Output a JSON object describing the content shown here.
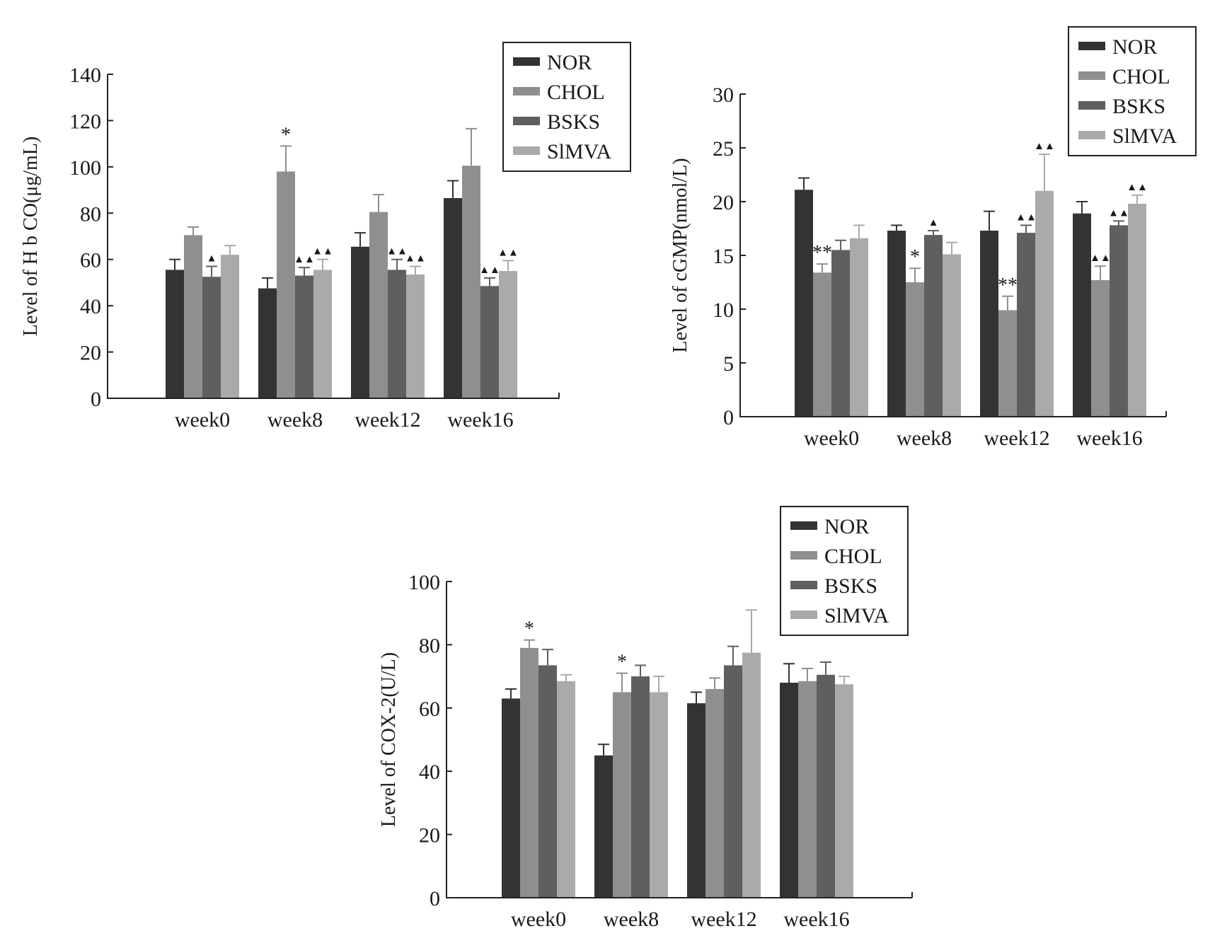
{
  "chart_data": [
    {
      "type": "bar",
      "ylabel": "Level of H b CO(μg/mL)",
      "categories": [
        "week0",
        "week8",
        "week12",
        "week16"
      ],
      "ylim": [
        0,
        140
      ],
      "yticks": [
        0,
        20,
        40,
        60,
        80,
        100,
        120,
        140
      ],
      "legend_position": "top-right",
      "series": [
        {
          "name": "NOR",
          "color": "#353234",
          "values": [
            55.5,
            47.5,
            65.5,
            86.5
          ],
          "errors": [
            4.5,
            4.5,
            6,
            7.5
          ],
          "marks": [
            "",
            "",
            "",
            ""
          ]
        },
        {
          "name": "CHOL",
          "color": "#8f8f8f",
          "values": [
            70.5,
            98,
            80.5,
            100.5
          ],
          "errors": [
            3.5,
            11,
            7.5,
            16
          ],
          "marks": [
            "",
            "*",
            "",
            ""
          ]
        },
        {
          "name": "BSKS",
          "color": "#5f5e60",
          "values": [
            52.5,
            53,
            55.5,
            48.5
          ],
          "errors": [
            4.5,
            3.5,
            4.5,
            3.5
          ],
          "marks": [
            "▲",
            "▲▲",
            "▲▲",
            "▲▲"
          ]
        },
        {
          "name": "SlMVA",
          "color": "#aaaaaa",
          "values": [
            62,
            55.5,
            53.5,
            55
          ],
          "errors": [
            4,
            4.5,
            3.5,
            4.5
          ],
          "marks": [
            "",
            "▲▲",
            "▲▲",
            "▲▲"
          ]
        }
      ]
    },
    {
      "type": "bar",
      "ylabel": "Level of cGMP(nmol/L)",
      "categories": [
        "week0",
        "week8",
        "week12",
        "week16"
      ],
      "ylim": [
        0,
        30
      ],
      "yticks": [
        0,
        5,
        10,
        15,
        20,
        25,
        30
      ],
      "legend_position": "top-right",
      "series": [
        {
          "name": "NOR",
          "color": "#353234",
          "values": [
            21.1,
            17.3,
            17.3,
            18.9
          ],
          "errors": [
            1.1,
            0.5,
            1.8,
            1.1
          ],
          "marks": [
            "",
            "",
            "",
            ""
          ]
        },
        {
          "name": "CHOL",
          "color": "#8f8f8f",
          "values": [
            13.4,
            12.5,
            9.9,
            12.7
          ],
          "errors": [
            0.8,
            1.3,
            1.3,
            1.3
          ],
          "marks": [
            "**",
            "*",
            "**",
            "▲▲"
          ]
        },
        {
          "name": "BSKS",
          "color": "#5f5e60",
          "values": [
            15.5,
            16.9,
            17.1,
            17.8
          ],
          "errors": [
            0.9,
            0.4,
            0.7,
            0.4
          ],
          "marks": [
            "",
            "▲",
            "▲▲",
            "▲▲"
          ]
        },
        {
          "name": "SlMVA",
          "color": "#aaaaaa",
          "values": [
            16.6,
            15.1,
            21.0,
            19.8
          ],
          "errors": [
            1.2,
            1.1,
            3.4,
            0.8
          ],
          "marks": [
            "",
            "",
            "▲▲",
            "▲▲"
          ]
        }
      ]
    },
    {
      "type": "bar",
      "ylabel": "Level of COX-2(U/L)",
      "categories": [
        "week0",
        "week8",
        "week12",
        "week16"
      ],
      "ylim": [
        0,
        100
      ],
      "yticks": [
        0,
        20,
        40,
        60,
        80,
        100
      ],
      "legend_position": "top-right",
      "series": [
        {
          "name": "NOR",
          "color": "#353234",
          "values": [
            63,
            45,
            61.5,
            68
          ],
          "errors": [
            3,
            3.5,
            3.5,
            6
          ],
          "marks": [
            "",
            "",
            "",
            ""
          ]
        },
        {
          "name": "CHOL",
          "color": "#8f8f8f",
          "values": [
            79,
            65,
            66,
            68.5
          ],
          "errors": [
            2.5,
            6,
            3.5,
            4
          ],
          "marks": [
            "*",
            "*",
            "",
            ""
          ]
        },
        {
          "name": "BSKS",
          "color": "#5f5e60",
          "values": [
            73.5,
            70,
            73.5,
            70.5
          ],
          "errors": [
            5,
            3.5,
            6,
            4
          ],
          "marks": [
            "",
            "",
            "",
            ""
          ]
        },
        {
          "name": "SlMVA",
          "color": "#aaaaaa",
          "values": [
            68.5,
            65,
            77.5,
            67.5
          ],
          "errors": [
            2,
            5,
            13.5,
            2.5
          ],
          "marks": [
            "",
            "",
            "",
            ""
          ]
        }
      ]
    }
  ]
}
